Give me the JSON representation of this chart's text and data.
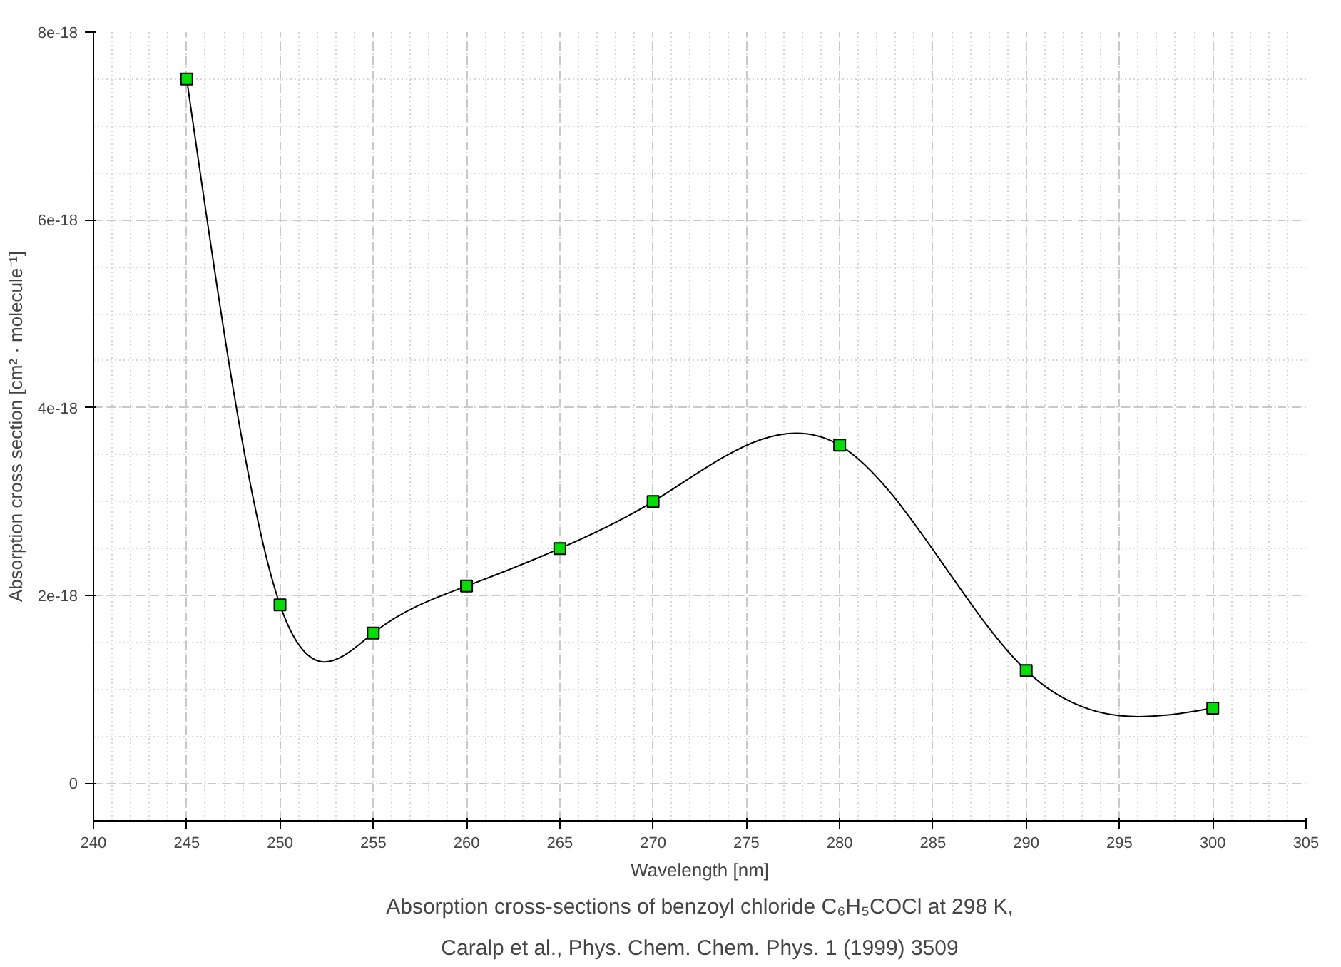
{
  "chart_data": {
    "type": "scatter",
    "title": "Absorption cross-sections of benzoyl chloride C₆H₅COCl at 298 K,",
    "annotations": [
      "Caralp et al., Phys. Chem. Chem. Phys. 1 (1999) 3509"
    ],
    "xlabel": "Wavelength [nm]",
    "ylabel": "Absorption cross section [cm² · molecule⁻¹]",
    "x": [
      245,
      250,
      255,
      260,
      265,
      270,
      280,
      290,
      300
    ],
    "series": [
      {
        "type": "line",
        "color": "#000000",
        "marker": "none",
        "values": [
          7.5e-18,
          1.9e-18,
          1.6e-18,
          2.1e-18,
          2.5e-18,
          3e-18,
          3.6e-18,
          1.2e-18,
          8e-19
        ]
      },
      {
        "color": "#00e000",
        "marker": "square",
        "values": [
          7.5e-18,
          1.9e-18,
          1.6e-18,
          2.1e-18,
          2.5e-18,
          3e-18,
          3.6e-18,
          1.2e-18,
          8e-19
        ]
      }
    ],
    "line_style": "solid",
    "grid": true,
    "xlim": [
      240,
      305
    ],
    "xticks": [
      240,
      245,
      250,
      255,
      260,
      265,
      270,
      275,
      280,
      285,
      290,
      295,
      300,
      305
    ],
    "ylim": [
      -4e-19,
      8e-18
    ],
    "yticks": [
      0,
      {
        "value": 2e-18,
        "label": "2e-18"
      },
      {
        "value": 4e-18,
        "label": "4e-18"
      },
      {
        "value": 6e-18,
        "label": "6e-18"
      },
      {
        "value": 8e-18,
        "label": "8e-18"
      }
    ]
  }
}
